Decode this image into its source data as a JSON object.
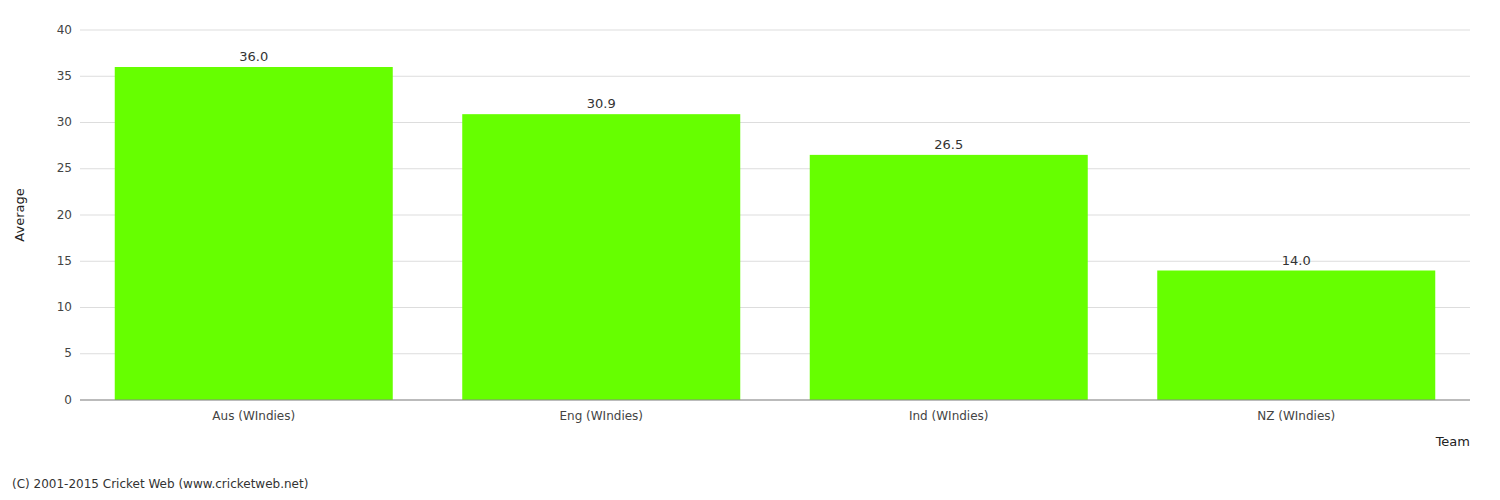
{
  "chart_data": {
    "type": "bar",
    "categories": [
      "Aus (WIndies)",
      "Eng (WIndies)",
      "Ind (WIndies)",
      "NZ (WIndies)"
    ],
    "values": [
      36.0,
      30.9,
      26.5,
      14.0
    ],
    "value_labels": [
      "36.0",
      "30.9",
      "26.5",
      "14.0"
    ],
    "data_labels": true,
    "color": "#66ff00",
    "xlabel": "Team",
    "ylabel": "Average",
    "ylim": [
      0,
      40
    ],
    "yticks": [
      0,
      5,
      10,
      15,
      20,
      25,
      30,
      35,
      40
    ],
    "grid": true,
    "annotations": [
      "(C) 2001-2015 Cricket Web (www.cricketweb.net)"
    ]
  }
}
